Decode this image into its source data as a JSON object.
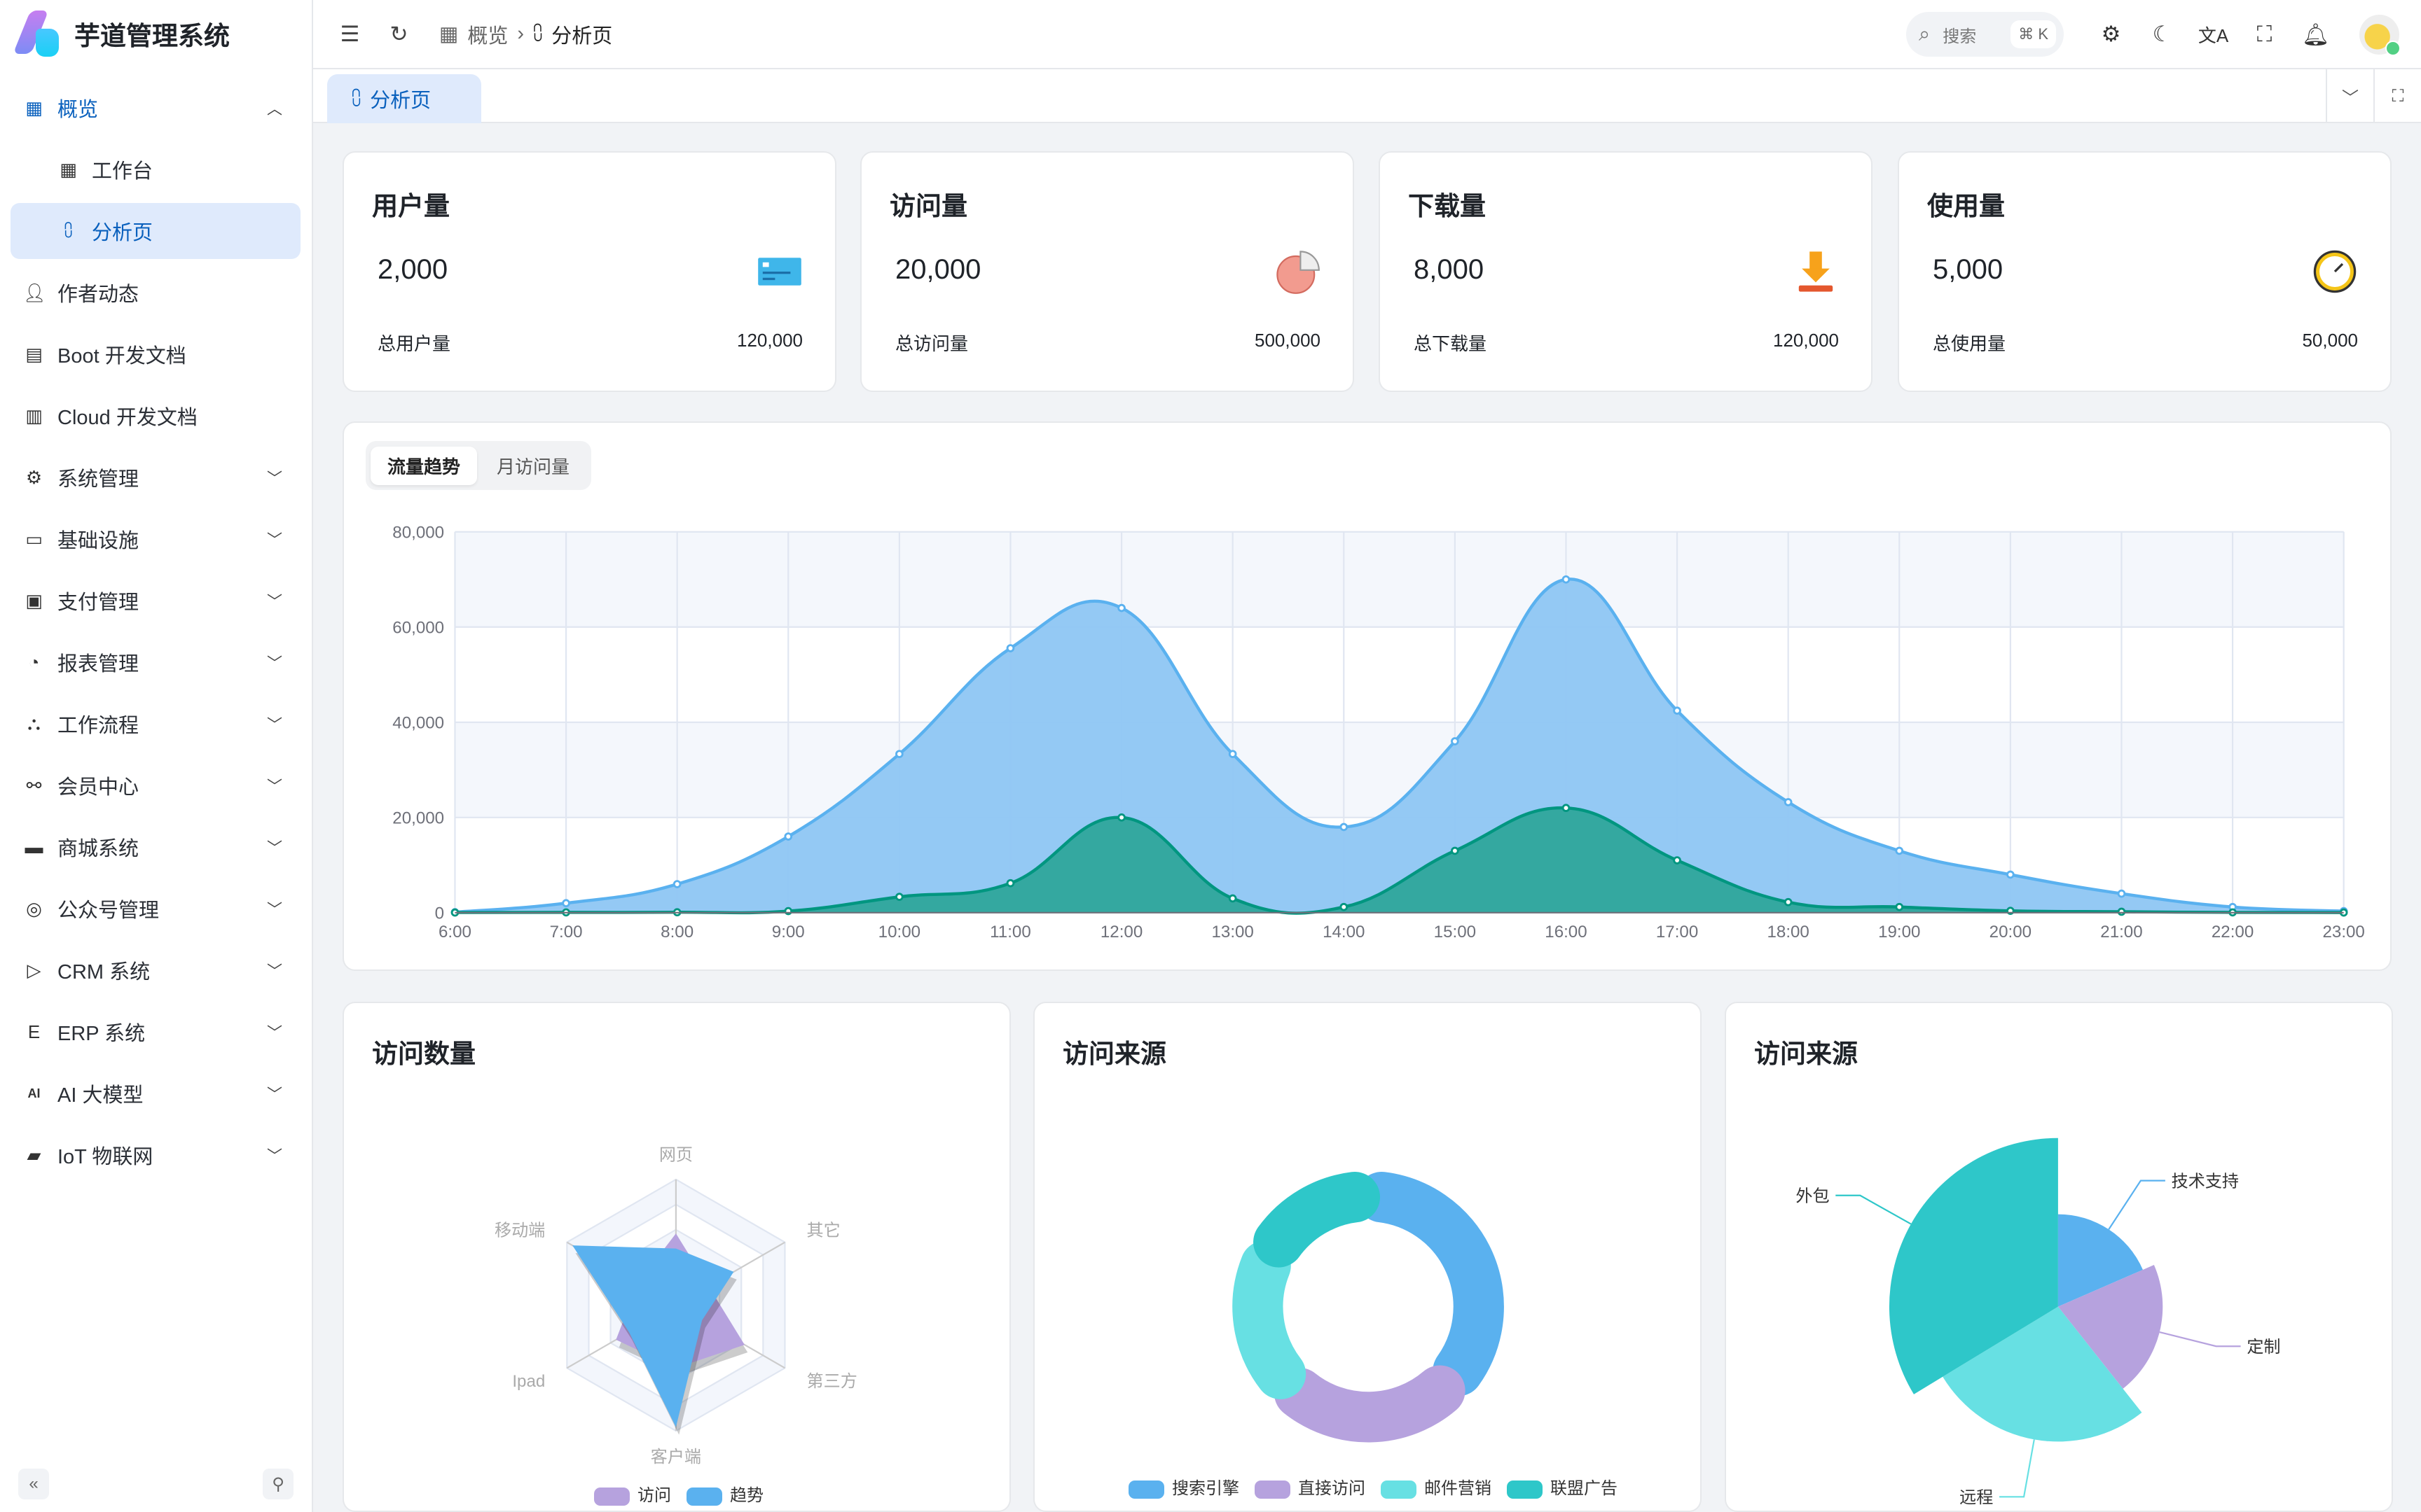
{
  "app": {
    "title": "芋道管理系统"
  },
  "sidebar": {
    "items": [
      {
        "label": "概览",
        "icon": "grid-icon",
        "state": "open",
        "chevron": "up"
      },
      {
        "label": "工作台",
        "icon": "grid-icon",
        "sub": true
      },
      {
        "label": "分析页",
        "icon": "chart-line-icon",
        "sub": true,
        "active": true
      },
      {
        "label": "作者动态",
        "icon": "user-icon"
      },
      {
        "label": "Boot 开发文档",
        "icon": "document-icon"
      },
      {
        "label": "Cloud 开发文档",
        "icon": "documents-icon"
      },
      {
        "label": "系统管理",
        "icon": "gear-icon",
        "chevron": "down"
      },
      {
        "label": "基础设施",
        "icon": "monitor-icon",
        "chevron": "down"
      },
      {
        "label": "支付管理",
        "icon": "payment-icon",
        "chevron": "down"
      },
      {
        "label": "报表管理",
        "icon": "pie-icon",
        "chevron": "down"
      },
      {
        "label": "工作流程",
        "icon": "workflow-icon",
        "chevron": "down"
      },
      {
        "label": "会员中心",
        "icon": "bike-icon",
        "chevron": "down"
      },
      {
        "label": "商城系统",
        "icon": "shop-icon",
        "chevron": "down"
      },
      {
        "label": "公众号管理",
        "icon": "compass-icon",
        "chevron": "down"
      },
      {
        "label": "CRM 系统",
        "icon": "crm-icon",
        "chevron": "down"
      },
      {
        "label": "ERP 系统",
        "icon": "erp-icon",
        "chevron": "down"
      },
      {
        "label": "AI 大模型",
        "icon": "ai-icon",
        "chevron": "down"
      },
      {
        "label": "IoT 物联网",
        "icon": "router-icon",
        "chevron": "down"
      }
    ]
  },
  "header": {
    "breadcrumb": [
      "概览",
      "分析页"
    ],
    "search_placeholder": "搜索",
    "search_shortcut": "⌘ K"
  },
  "tabs": [
    {
      "label": "分析页",
      "active": true
    }
  ],
  "stats": [
    {
      "title": "用户量",
      "value": "2,000",
      "total_label": "总用户量",
      "total_value": "120,000",
      "icon": "credit-card-icon"
    },
    {
      "title": "访问量",
      "value": "20,000",
      "total_label": "总访问量",
      "total_value": "500,000",
      "icon": "pie-chart-icon"
    },
    {
      "title": "下载量",
      "value": "8,000",
      "total_label": "总下载量",
      "total_value": "120,000",
      "icon": "download-icon"
    },
    {
      "title": "使用量",
      "value": "5,000",
      "total_label": "总使用量",
      "total_value": "50,000",
      "icon": "clock-icon"
    }
  ],
  "trend": {
    "tabs": [
      "流量趋势",
      "月访问量"
    ],
    "active_tab": "流量趋势"
  },
  "chart_data": [
    {
      "type": "area",
      "x": [
        "6:00",
        "7:00",
        "8:00",
        "9:00",
        "10:00",
        "11:00",
        "12:00",
        "13:00",
        "14:00",
        "15:00",
        "16:00",
        "17:00",
        "18:00",
        "19:00",
        "20:00",
        "21:00",
        "22:00",
        "23:00"
      ],
      "ylim": [
        0,
        80000
      ],
      "yticks": [
        "0",
        "20,000",
        "40,000",
        "60,000",
        "80,000"
      ],
      "grid": true,
      "smooth": true,
      "series": [
        {
          "values": [
            111,
            2000,
            6000,
            16000,
            33333,
            55555,
            64000,
            33333,
            18000,
            36000,
            70000,
            42444,
            23222,
            13000,
            8000,
            4000,
            1200,
            333
          ],
          "color": "#5ab1ef"
        },
        {
          "values": [
            33,
            66,
            88,
            333,
            3333,
            6200,
            20000,
            3000,
            1200,
            13000,
            22000,
            11000,
            2221,
            1201,
            390,
            198,
            60,
            30
          ],
          "color": "#019680"
        }
      ]
    },
    {
      "type": "radar",
      "title": "访问数量",
      "indicators": [
        "网页",
        "移动端",
        "Ipad",
        "客户端",
        "第三方",
        "其它"
      ],
      "max": 100,
      "series": [
        {
          "name": "访问",
          "values": [
            57,
            35,
            55,
            50,
            63,
            30
          ],
          "color": "#b6a2de"
        },
        {
          "name": "趋势",
          "values": [
            45,
            95,
            43,
            97,
            24,
            53
          ],
          "color": "#5ab1ef"
        }
      ],
      "legend": "bottom"
    },
    {
      "type": "pie",
      "subtype": "donut",
      "title": "访问来源",
      "categories": [
        "搜索引擎",
        "直接访问",
        "邮件营销",
        "联盟广告"
      ],
      "values": [
        1048,
        735,
        580,
        484
      ],
      "colors": [
        "#5ab1ef",
        "#b6a2de",
        "#67e0e3",
        "#2ec7c9"
      ],
      "legend": "bottom"
    },
    {
      "type": "pie",
      "subtype": "rose",
      "title": "访问来源",
      "categories": [
        "技术支持",
        "定制",
        "远程",
        "外包"
      ],
      "values": [
        274,
        310,
        400,
        500
      ],
      "colors": [
        "#5ab1ef",
        "#b6a2de",
        "#67e0e3",
        "#2ec7c9"
      ]
    }
  ]
}
